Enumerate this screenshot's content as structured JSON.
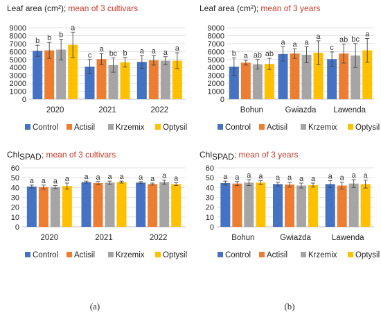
{
  "colors": {
    "Control": "#4472c4",
    "Actisil": "#ed7d31",
    "Krzemix": "#a5a5a5",
    "Optysil": "#ffc000"
  },
  "panel_labels": [
    "(a)",
    "(b)"
  ],
  "chart_data": [
    {
      "type": "bar",
      "title": "Leaf area (cm²);",
      "subtitle": "mean of 3 cultivars",
      "categories": [
        "2020",
        "2021",
        "2022"
      ],
      "ylim": [
        0,
        9000
      ],
      "yticks": [
        0,
        1000,
        2000,
        3000,
        4000,
        5000,
        6000,
        7000,
        8000,
        9000
      ],
      "grid": true,
      "legend": "bottom",
      "series": [
        {
          "name": "Control",
          "values": [
            6100,
            4100,
            4700
          ],
          "errors": [
            700,
            900,
            800
          ],
          "labels": [
            "b",
            "c",
            "a"
          ]
        },
        {
          "name": "Actisil",
          "values": [
            6150,
            5050,
            4900
          ],
          "errors": [
            1000,
            700,
            600
          ],
          "labels": [
            "b",
            "a",
            "a"
          ]
        },
        {
          "name": "Krzemix",
          "values": [
            6250,
            4300,
            4850
          ],
          "errors": [
            1300,
            900,
            500
          ],
          "labels": [
            "b",
            "bc",
            "a"
          ]
        },
        {
          "name": "Optysil",
          "values": [
            6850,
            4650,
            4850
          ],
          "errors": [
            1600,
            600,
            1000
          ],
          "labels": [
            "a",
            "b",
            "a"
          ]
        }
      ]
    },
    {
      "type": "bar",
      "title": "Leaf area (cm²);",
      "subtitle": "mean of 3 years",
      "categories": [
        "Bohun",
        "Gwiazda",
        "Lawenda"
      ],
      "ylim": [
        0,
        9000
      ],
      "yticks": [
        0,
        1000,
        2000,
        3000,
        4000,
        5000,
        6000,
        7000,
        8000,
        9000
      ],
      "grid": true,
      "legend": "bottom",
      "series": [
        {
          "name": "Control",
          "values": [
            4100,
            5700,
            5050
          ],
          "errors": [
            1100,
            900,
            900
          ],
          "labels": [
            "b",
            "a",
            "c"
          ]
        },
        {
          "name": "Actisil",
          "values": [
            4600,
            5750,
            5750
          ],
          "errors": [
            300,
            600,
            1200
          ],
          "labels": [
            "a",
            "a",
            "ab"
          ]
        },
        {
          "name": "Krzemix",
          "values": [
            4400,
            5600,
            5500
          ],
          "errors": [
            600,
            1000,
            1500
          ],
          "labels": [
            "ab",
            "a",
            "bc"
          ]
        },
        {
          "name": "Optysil",
          "values": [
            4450,
            5850,
            6150
          ],
          "errors": [
            700,
            1500,
            1500
          ],
          "labels": [
            "ab",
            "a",
            "a"
          ]
        }
      ]
    },
    {
      "type": "bar",
      "title": "Chl",
      "title_subscript": "SPAD",
      "subtitle": "; mean of 3 cultivars",
      "categories": [
        "2020",
        "2021",
        "2022"
      ],
      "ylim": [
        0,
        60
      ],
      "yticks": [
        0,
        10,
        20,
        30,
        40,
        50,
        60
      ],
      "grid": true,
      "legend": "bottom",
      "series": [
        {
          "name": "Control",
          "values": [
            41,
            45.5,
            45
          ],
          "errors": [
            1.5,
            1,
            1
          ],
          "labels": [
            "a",
            "a",
            "a"
          ]
        },
        {
          "name": "Actisil",
          "values": [
            40.5,
            44.5,
            43.5
          ],
          "errors": [
            2,
            1.5,
            1
          ],
          "labels": [
            "a",
            "a",
            "a"
          ]
        },
        {
          "name": "Krzemix",
          "values": [
            40.5,
            45,
            45.5
          ],
          "errors": [
            1.5,
            1.5,
            2
          ],
          "labels": [
            "a",
            "a",
            "a"
          ]
        },
        {
          "name": "Optysil",
          "values": [
            41.5,
            45.5,
            43.5
          ],
          "errors": [
            3,
            1,
            1.5
          ],
          "labels": [
            "a",
            "a",
            "a"
          ]
        }
      ]
    },
    {
      "type": "bar",
      "title": "Chl",
      "title_subscript": "SPAD",
      "subtitle": "; mean of 3 years",
      "categories": [
        "Bohun",
        "Gwiazda",
        "Lawenda"
      ],
      "ylim": [
        0,
        60
      ],
      "yticks": [
        0,
        10,
        20,
        30,
        40,
        50,
        60
      ],
      "grid": true,
      "legend": "bottom",
      "series": [
        {
          "name": "Control",
          "values": [
            44.5,
            43.5,
            43.5
          ],
          "errors": [
            2,
            2,
            3.5
          ],
          "labels": [
            "a",
            "a",
            "a"
          ]
        },
        {
          "name": "Actisil",
          "values": [
            44,
            43,
            42
          ],
          "errors": [
            2,
            2.5,
            3.5
          ],
          "labels": [
            "a",
            "a",
            "a"
          ]
        },
        {
          "name": "Krzemix",
          "values": [
            45,
            42,
            44
          ],
          "errors": [
            3,
            2.5,
            4
          ],
          "labels": [
            "a",
            "a",
            "a"
          ]
        },
        {
          "name": "Optysil",
          "values": [
            45,
            42.5,
            43.5
          ],
          "errors": [
            2,
            2,
            4
          ],
          "labels": [
            "a",
            "a",
            "a"
          ]
        }
      ]
    }
  ]
}
